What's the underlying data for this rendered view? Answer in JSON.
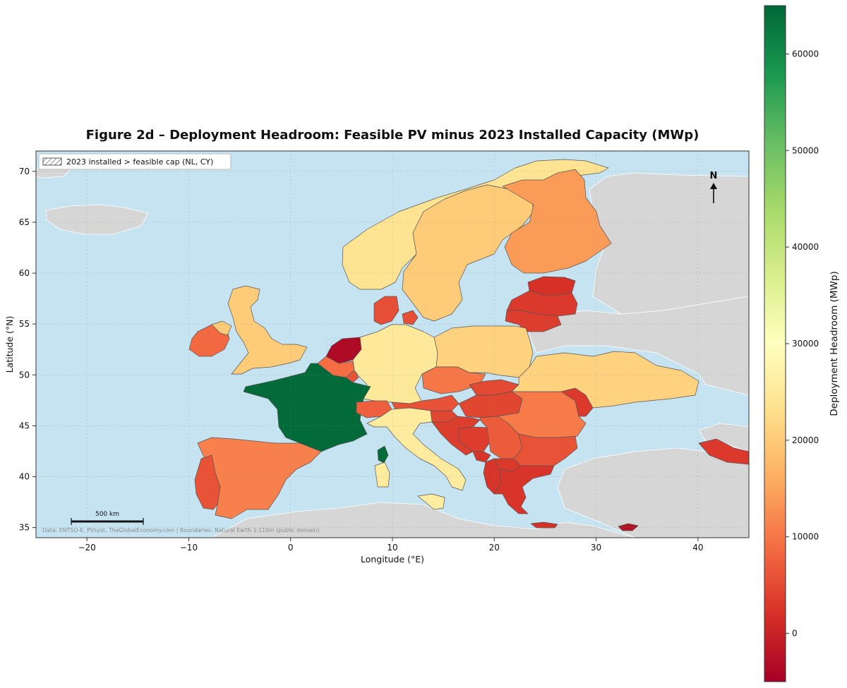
{
  "title": "Figure 2d – Deployment Headroom: Feasible PV minus 2023 Installed Capacity (MWp)",
  "xlabel": "Longitude (°E)",
  "ylabel": "Latitude (°N)",
  "colorbar_label": "Deployment Headroom (MWp)",
  "legend_label": "2023 installed > feasible cap (NL, CY)",
  "north_label": "N",
  "scalebar_label": "500 km",
  "source_note": "Data: ENTSO-E, PVsyst, TheGlobalEconomy.com | Boundaries: Natural Earth 1:110m (public domain)",
  "colors": {
    "sea": "#c6e3f1",
    "non_eu_land": "#d6d6d6",
    "border": "#555555",
    "colormap": [
      "#a50026",
      "#d73027",
      "#f46d43",
      "#fdae61",
      "#fee08b",
      "#ffffbf",
      "#d9ef8b",
      "#a6d96a",
      "#66bd63",
      "#1a9850",
      "#006837"
    ]
  },
  "chart_data": {
    "type": "choropleth",
    "xlim": [
      -25,
      45
    ],
    "ylim": [
      34,
      72
    ],
    "xticks": [
      -20,
      -10,
      0,
      10,
      20,
      30,
      40
    ],
    "yticks": [
      35,
      40,
      45,
      50,
      55,
      60,
      65,
      70
    ],
    "xtick_labels": [
      "−20",
      "−10",
      "0",
      "10",
      "20",
      "30",
      "40"
    ],
    "ytick_labels": [
      "35",
      "40",
      "45",
      "50",
      "55",
      "60",
      "65",
      "70"
    ],
    "grid": true,
    "colorbar": {
      "min": -5000,
      "max": 65000,
      "ticks": [
        0,
        10000,
        20000,
        30000,
        40000,
        50000,
        60000
      ],
      "tick_labels": [
        "0",
        "10000",
        "20000",
        "30000",
        "40000",
        "50000",
        "60000"
      ]
    },
    "regions": [
      {
        "name": "Norway",
        "value": 24000
      },
      {
        "name": "Sweden",
        "value": 20000
      },
      {
        "name": "Finland",
        "value": 14000
      },
      {
        "name": "Estonia",
        "value": 2000
      },
      {
        "name": "Latvia",
        "value": 3000
      },
      {
        "name": "Lithuania",
        "value": 3500
      },
      {
        "name": "Denmark",
        "value": 5500
      },
      {
        "name": "Ireland",
        "value": 8500
      },
      {
        "name": "United Kingdom",
        "value": 20000
      },
      {
        "name": "Netherlands",
        "value": -3500
      },
      {
        "name": "Belgium",
        "value": 9000
      },
      {
        "name": "Luxembourg",
        "value": 6000
      },
      {
        "name": "Germany",
        "value": 25000
      },
      {
        "name": "Poland",
        "value": 21000
      },
      {
        "name": "France",
        "value": 64500
      },
      {
        "name": "Switzerland",
        "value": 7500
      },
      {
        "name": "Austria",
        "value": 6000
      },
      {
        "name": "Czechia",
        "value": 10000
      },
      {
        "name": "Slovakia",
        "value": 5000
      },
      {
        "name": "Hungary",
        "value": 4500
      },
      {
        "name": "Slovenia",
        "value": 4500
      },
      {
        "name": "Croatia",
        "value": 3500
      },
      {
        "name": "Bosnia and Herzegovina",
        "value": 3500
      },
      {
        "name": "Serbia",
        "value": 7000
      },
      {
        "name": "Montenegro",
        "value": 2500
      },
      {
        "name": "Albania",
        "value": 2500
      },
      {
        "name": "North Macedonia",
        "value": 3000
      },
      {
        "name": "Greece",
        "value": 2500
      },
      {
        "name": "Crete",
        "value": 2000
      },
      {
        "name": "Bulgaria",
        "value": 6000
      },
      {
        "name": "Romania",
        "value": 10500
      },
      {
        "name": "Moldova",
        "value": 3000
      },
      {
        "name": "Ukraine",
        "value": 21000
      },
      {
        "name": "Italy",
        "value": 25500
      },
      {
        "name": "Sardinia",
        "value": 26000
      },
      {
        "name": "Sicily",
        "value": 25500
      },
      {
        "name": "Corsica",
        "value": 64500
      },
      {
        "name": "Spain",
        "value": 11000
      },
      {
        "name": "Portugal",
        "value": 6000
      },
      {
        "name": "Georgia",
        "value": 3000
      },
      {
        "name": "Cyprus",
        "value": -2500
      }
    ]
  }
}
